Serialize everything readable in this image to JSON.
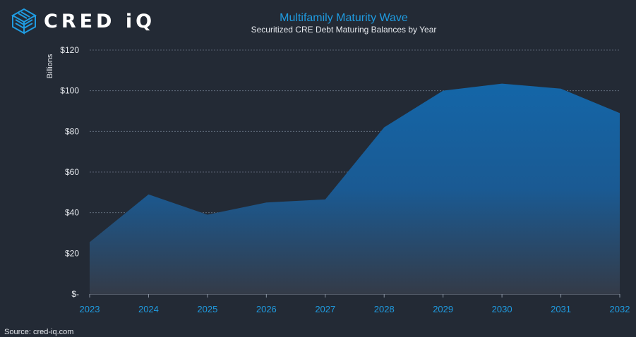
{
  "logo": {
    "brand": "CRED iQ"
  },
  "source": "Source:  cred-iq.com",
  "colors": {
    "background": "#232a35",
    "accent": "#1f9be0",
    "area_top": "#1466a8",
    "area_bottom": "#343b48",
    "grid": "#6b7686",
    "text": "#e6e9ee"
  },
  "chart_data": {
    "type": "area",
    "title": "Multifamily Maturity Wave",
    "subtitle": "Securitized CRE Debt Maturing Balances by Year",
    "xlabel": "",
    "ylabel": "Billions",
    "categories": [
      "2023",
      "2024",
      "2025",
      "2026",
      "2027",
      "2028",
      "2029",
      "2030",
      "2031",
      "2032"
    ],
    "values": [
      25.5,
      49,
      39,
      45,
      46.5,
      82,
      100,
      103.5,
      101,
      89
    ],
    "ylim": [
      0,
      120
    ],
    "y_ticks": [
      {
        "value": 0,
        "label": "$-"
      },
      {
        "value": 20,
        "label": "$20"
      },
      {
        "value": 40,
        "label": "$40"
      },
      {
        "value": 60,
        "label": "$60"
      },
      {
        "value": 80,
        "label": "$80"
      },
      {
        "value": 100,
        "label": "$100"
      },
      {
        "value": 120,
        "label": "$120"
      }
    ],
    "grid": true,
    "legend": "none"
  }
}
